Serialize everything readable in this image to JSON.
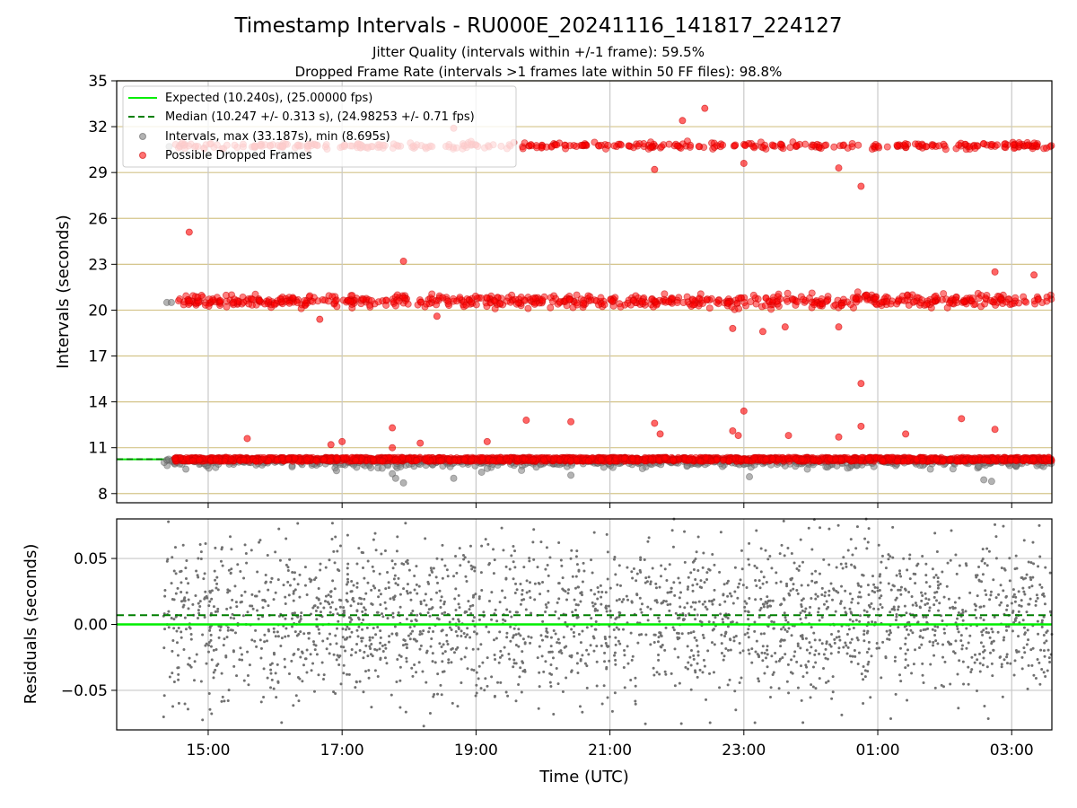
{
  "chart_data": [
    {
      "type": "scatter",
      "title": "Timestamp Intervals - RU000E_20241116_141817_224127",
      "subtitle_lines": [
        "Jitter Quality (intervals within +/-1 frame): 59.5%",
        "Dropped Frame Rate (intervals >1 frames late within 50 FF files): 98.8%"
      ],
      "xlabel": "",
      "ylabel": "Intervals (seconds)",
      "xlim": [
        "13:38",
        "03:36"
      ],
      "ylim": [
        7.4,
        35
      ],
      "yticks": [
        8,
        11,
        14,
        17,
        20,
        23,
        26,
        29,
        32,
        35
      ],
      "ytick_labels": [
        "8",
        "11",
        "14",
        "17",
        "20",
        "23",
        "26",
        "29",
        "32",
        "35"
      ],
      "xticks": [
        "15:00",
        "17:00",
        "19:00",
        "21:00",
        "23:00",
        "01:00",
        "03:00"
      ],
      "grid": "on",
      "grid_color_horizontal": "#d4c48a",
      "grid_color_vertical": "#c8c8c8",
      "legend_placement": "top-left",
      "legend": [
        {
          "label": "Expected (10.240s), (25.00000 fps)",
          "style": "solid-line",
          "color": "#00ee00"
        },
        {
          "label": "Median (10.247 +/- 0.313 s), (24.98253 +/- 0.71 fps)",
          "style": "dashed-line",
          "color": "#007f00"
        },
        {
          "label": "Intervals, max (33.187s), min (8.695s)",
          "style": "marker",
          "color": "#808080"
        },
        {
          "label": "Possible Dropped Frames",
          "style": "marker",
          "color": "#ff0000"
        }
      ],
      "expected_interval": 10.24,
      "median_interval": 10.247,
      "series": [
        {
          "name": "Intervals, max (33.187s), min (8.695s)",
          "color": "#808080",
          "time_range": [
            "14:20",
            "03:36"
          ],
          "main_band": {
            "center": 10.22,
            "spread": 0.25
          },
          "outliers": [
            {
              "x": "14:23",
              "y": 20.5
            },
            {
              "x": "14:27",
              "y": 20.5
            },
            {
              "x": "14:25",
              "y": 30.7
            },
            {
              "x": "14:40",
              "y": 9.6
            },
            {
              "x": "16:55",
              "y": 9.5
            },
            {
              "x": "17:45",
              "y": 9.3
            },
            {
              "x": "17:48",
              "y": 9.0
            },
            {
              "x": "17:55",
              "y": 8.7
            },
            {
              "x": "18:40",
              "y": 9.0
            },
            {
              "x": "19:05",
              "y": 9.4
            },
            {
              "x": "20:25",
              "y": 9.2
            },
            {
              "x": "23:05",
              "y": 9.1
            },
            {
              "x": "02:35",
              "y": 8.9
            },
            {
              "x": "02:42",
              "y": 8.8
            }
          ]
        },
        {
          "name": "Possible Dropped Frames",
          "color": "#ff0000",
          "time_range": [
            "14:30",
            "03:36"
          ],
          "bands": [
            {
              "center": 10.24,
              "spread": 0.12
            },
            {
              "center": 20.6,
              "spread": 0.2
            },
            {
              "center": 30.75,
              "spread": 0.1
            }
          ],
          "outliers": [
            {
              "x": "14:43",
              "y": 25.1
            },
            {
              "x": "17:55",
              "y": 23.2
            },
            {
              "x": "16:40",
              "y": 19.4
            },
            {
              "x": "18:25",
              "y": 19.6
            },
            {
              "x": "22:50",
              "y": 18.8
            },
            {
              "x": "23:17",
              "y": 18.6
            },
            {
              "x": "23:37",
              "y": 18.9
            },
            {
              "x": "00:25",
              "y": 18.9
            },
            {
              "x": "00:45",
              "y": 15.2
            },
            {
              "x": "23:00",
              "y": 13.4
            },
            {
              "x": "17:45",
              "y": 12.3
            },
            {
              "x": "19:45",
              "y": 12.8
            },
            {
              "x": "20:25",
              "y": 12.7
            },
            {
              "x": "21:40",
              "y": 12.6
            },
            {
              "x": "22:50",
              "y": 12.1
            },
            {
              "x": "00:45",
              "y": 12.4
            },
            {
              "x": "02:15",
              "y": 12.9
            },
            {
              "x": "02:45",
              "y": 12.2
            },
            {
              "x": "15:35",
              "y": 11.6
            },
            {
              "x": "16:50",
              "y": 11.2
            },
            {
              "x": "17:00",
              "y": 11.4
            },
            {
              "x": "17:45",
              "y": 11.0
            },
            {
              "x": "18:10",
              "y": 11.3
            },
            {
              "x": "19:10",
              "y": 11.4
            },
            {
              "x": "23:40",
              "y": 11.8
            },
            {
              "x": "00:25",
              "y": 11.7
            },
            {
              "x": "01:25",
              "y": 11.9
            },
            {
              "x": "21:45",
              "y": 11.9
            },
            {
              "x": "22:55",
              "y": 11.8
            },
            {
              "x": "22:05",
              "y": 32.4
            },
            {
              "x": "22:25",
              "y": 33.2
            },
            {
              "x": "21:40",
              "y": 29.2
            },
            {
              "x": "23:00",
              "y": 29.6
            },
            {
              "x": "00:25",
              "y": 29.3
            },
            {
              "x": "00:45",
              "y": 28.1
            },
            {
              "x": "02:45",
              "y": 22.5
            },
            {
              "x": "03:20",
              "y": 22.3
            },
            {
              "x": "18:40",
              "y": 31.9
            }
          ]
        }
      ]
    },
    {
      "type": "scatter",
      "title": "",
      "xlabel": "Time (UTC)",
      "ylabel": "Residuals (seconds)",
      "xlim": [
        "13:38",
        "03:36"
      ],
      "ylim": [
        -0.08,
        0.08
      ],
      "yticks": [
        -0.05,
        0,
        0.05
      ],
      "ytick_labels": [
        "−0.05",
        "0.00",
        "0.05"
      ],
      "xticks": [
        "15:00",
        "17:00",
        "19:00",
        "21:00",
        "23:00",
        "01:00",
        "03:00"
      ],
      "grid": "on",
      "expected_residual": 0.0,
      "median_residual": 0.007,
      "series": [
        {
          "name": "",
          "color": "#707070",
          "time_range": [
            "14:20",
            "03:36"
          ],
          "center": 0.005,
          "spread": 0.03
        }
      ]
    }
  ]
}
